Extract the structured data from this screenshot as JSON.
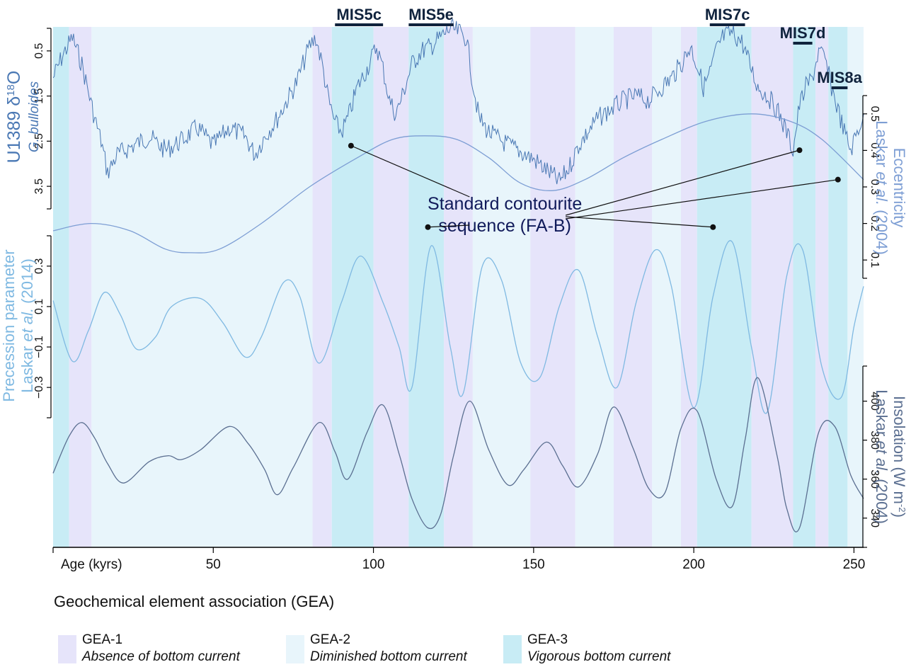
{
  "chart_data": {
    "type": "line",
    "x_axis": {
      "label": "Age (kyrs)",
      "range": [
        0,
        253
      ],
      "ticks": [
        50,
        100,
        150,
        200,
        250
      ]
    },
    "colors": {
      "gea1": "#e6e4fa",
      "gea2": "#e8f5fb",
      "gea3": "#c8ecf5",
      "d18o": "#4a78b4",
      "eccentricity": "#7d9ed4",
      "precession": "#7fb9e2",
      "insolation": "#5b6f91",
      "mis_bar": "#10233d",
      "annotation": "#101a5a"
    },
    "gea_bands": [
      {
        "gea": 3,
        "start": 0,
        "end": 5
      },
      {
        "gea": 1,
        "start": 5,
        "end": 12
      },
      {
        "gea": 2,
        "start": 12,
        "end": 81
      },
      {
        "gea": 1,
        "start": 81,
        "end": 87
      },
      {
        "gea": 3,
        "start": 87,
        "end": 100
      },
      {
        "gea": 1,
        "start": 100,
        "end": 111
      },
      {
        "gea": 3,
        "start": 111,
        "end": 122
      },
      {
        "gea": 1,
        "start": 122,
        "end": 131
      },
      {
        "gea": 2,
        "start": 131,
        "end": 149
      },
      {
        "gea": 1,
        "start": 149,
        "end": 163
      },
      {
        "gea": 2,
        "start": 163,
        "end": 175
      },
      {
        "gea": 1,
        "start": 175,
        "end": 187
      },
      {
        "gea": 2,
        "start": 187,
        "end": 196
      },
      {
        "gea": 1,
        "start": 196,
        "end": 201
      },
      {
        "gea": 3,
        "start": 201,
        "end": 218
      },
      {
        "gea": 1,
        "start": 218,
        "end": 231
      },
      {
        "gea": 3,
        "start": 231,
        "end": 238
      },
      {
        "gea": 1,
        "start": 238,
        "end": 242
      },
      {
        "gea": 3,
        "start": 242,
        "end": 248
      },
      {
        "gea": 2,
        "start": 248,
        "end": 253
      }
    ],
    "mis_labels": [
      {
        "label": "MIS5c",
        "start": 88,
        "end": 103,
        "level": 0
      },
      {
        "label": "MIS5e",
        "start": 111,
        "end": 125,
        "level": 0
      },
      {
        "label": "MIS7c",
        "start": 205,
        "end": 216,
        "level": 0
      },
      {
        "label": "MIS7d",
        "start": 231,
        "end": 237,
        "level": 1
      },
      {
        "label": "MIS8a",
        "start": 243,
        "end": 248,
        "level": 2
      }
    ],
    "series": [
      {
        "name": "U1389 δ18O",
        "subtitle": "G. bulloides",
        "axis_ticks": [
          0.5,
          1.5,
          2.5,
          3.5
        ],
        "axis_range": [
          0,
          4
        ],
        "points": [
          [
            0,
            1.1
          ],
          [
            3,
            0.6
          ],
          [
            6,
            0.2
          ],
          [
            9,
            0.8
          ],
          [
            11,
            1.4
          ],
          [
            13,
            2.0
          ],
          [
            15,
            2.5
          ],
          [
            17,
            3.2
          ],
          [
            20,
            2.8
          ],
          [
            25,
            2.6
          ],
          [
            30,
            2.4
          ],
          [
            35,
            2.7
          ],
          [
            40,
            2.5
          ],
          [
            45,
            2.2
          ],
          [
            50,
            2.6
          ],
          [
            55,
            2.2
          ],
          [
            60,
            2.4
          ],
          [
            63,
            2.8
          ],
          [
            66,
            2.4
          ],
          [
            70,
            2.0
          ],
          [
            73,
            1.6
          ],
          [
            76,
            1.2
          ],
          [
            78,
            0.8
          ],
          [
            80,
            0.4
          ],
          [
            82,
            0.2
          ],
          [
            84,
            0.8
          ],
          [
            86,
            1.6
          ],
          [
            88,
            2.1
          ],
          [
            90,
            2.3
          ],
          [
            92,
            2.0
          ],
          [
            95,
            1.3
          ],
          [
            98,
            0.9
          ],
          [
            101,
            0.4
          ],
          [
            103,
            0.9
          ],
          [
            105,
            1.6
          ],
          [
            107,
            1.9
          ],
          [
            109,
            1.5
          ],
          [
            112,
            0.8
          ],
          [
            115,
            0.5
          ],
          [
            118,
            0.4
          ],
          [
            121,
            0.2
          ],
          [
            124,
            0.0
          ],
          [
            127,
            0.1
          ],
          [
            129,
            0.2
          ],
          [
            131,
            1.2
          ],
          [
            133,
            2.0
          ],
          [
            136,
            2.3
          ],
          [
            140,
            2.5
          ],
          [
            145,
            2.7
          ],
          [
            150,
            2.9
          ],
          [
            155,
            3.2
          ],
          [
            158,
            3.4
          ],
          [
            161,
            3.1
          ],
          [
            164,
            2.6
          ],
          [
            167,
            2.3
          ],
          [
            170,
            2.0
          ],
          [
            174,
            1.8
          ],
          [
            178,
            1.6
          ],
          [
            182,
            1.5
          ],
          [
            186,
            1.6
          ],
          [
            190,
            1.3
          ],
          [
            193,
            1.1
          ],
          [
            196,
            0.8
          ],
          [
            199,
            0.4
          ],
          [
            201,
            0.8
          ],
          [
            203,
            1.3
          ],
          [
            205,
            1.0
          ],
          [
            207,
            0.5
          ],
          [
            209,
            0.2
          ],
          [
            212,
            0.1
          ],
          [
            215,
            0.3
          ],
          [
            218,
            0.9
          ],
          [
            220,
            1.3
          ],
          [
            223,
            1.5
          ],
          [
            226,
            1.8
          ],
          [
            229,
            2.3
          ],
          [
            231,
            2.7
          ],
          [
            233,
            1.7
          ],
          [
            235,
            1.3
          ],
          [
            237,
            1.1
          ],
          [
            239,
            0.5
          ],
          [
            241,
            0.7
          ],
          [
            243,
            1.3
          ],
          [
            245,
            1.8
          ],
          [
            247,
            2.3
          ],
          [
            249,
            2.7
          ],
          [
            251,
            2.3
          ],
          [
            253,
            1.9
          ]
        ]
      },
      {
        "name": "Eccentricity",
        "source": "Laskar et al. (2004)",
        "axis_ticks": [
          0.5,
          0.4,
          0.3,
          0.2,
          0.1
        ],
        "axis_range": [
          0.05,
          0.55
        ],
        "points": [
          [
            0,
            0.18
          ],
          [
            12,
            0.2
          ],
          [
            24,
            0.18
          ],
          [
            35,
            0.13
          ],
          [
            43,
            0.12
          ],
          [
            52,
            0.13
          ],
          [
            65,
            0.2
          ],
          [
            80,
            0.3
          ],
          [
            95,
            0.38
          ],
          [
            106,
            0.43
          ],
          [
            116,
            0.44
          ],
          [
            126,
            0.43
          ],
          [
            136,
            0.38
          ],
          [
            146,
            0.31
          ],
          [
            156,
            0.29
          ],
          [
            166,
            0.32
          ],
          [
            178,
            0.38
          ],
          [
            190,
            0.43
          ],
          [
            204,
            0.48
          ],
          [
            218,
            0.5
          ],
          [
            230,
            0.48
          ],
          [
            240,
            0.43
          ],
          [
            253,
            0.32
          ]
        ]
      },
      {
        "name": "Precession parameter",
        "source": "Laskar et al. (2014)",
        "axis_ticks": [
          0.3,
          0.1,
          -0.1,
          -0.3
        ],
        "axis_range": [
          -0.45,
          0.45
        ],
        "points": [
          [
            0,
            0.13
          ],
          [
            6,
            -0.17
          ],
          [
            11,
            -0.02
          ],
          [
            16,
            0.17
          ],
          [
            21,
            0.06
          ],
          [
            26,
            -0.11
          ],
          [
            32,
            -0.05
          ],
          [
            37,
            0.1
          ],
          [
            46,
            0.14
          ],
          [
            53,
            0.02
          ],
          [
            60,
            -0.15
          ],
          [
            65,
            -0.05
          ],
          [
            72,
            0.22
          ],
          [
            77,
            0.15
          ],
          [
            83,
            -0.18
          ],
          [
            90,
            0.12
          ],
          [
            96,
            0.35
          ],
          [
            103,
            0.12
          ],
          [
            108,
            -0.1
          ],
          [
            112,
            -0.3
          ],
          [
            118,
            0.4
          ],
          [
            124,
            -0.1
          ],
          [
            128,
            -0.33
          ],
          [
            134,
            0.3
          ],
          [
            140,
            0.23
          ],
          [
            146,
            -0.18
          ],
          [
            152,
            -0.25
          ],
          [
            158,
            0.1
          ],
          [
            164,
            0.28
          ],
          [
            170,
            -0.05
          ],
          [
            176,
            -0.3
          ],
          [
            182,
            0.12
          ],
          [
            188,
            0.38
          ],
          [
            193,
            0.2
          ],
          [
            200,
            -0.4
          ],
          [
            206,
            0.15
          ],
          [
            212,
            0.42
          ],
          [
            218,
            -0.1
          ],
          [
            223,
            -0.42
          ],
          [
            229,
            0.25
          ],
          [
            234,
            0.38
          ],
          [
            240,
            -0.2
          ],
          [
            246,
            -0.35
          ],
          [
            250,
            0.0
          ],
          [
            253,
            0.2
          ]
        ]
      },
      {
        "name": "Insolation (W m-2)",
        "source": "Laskar et al. (2004)",
        "axis_ticks": [
          400,
          380,
          360,
          340
        ],
        "axis_range": [
          325,
          418
        ],
        "points": [
          [
            0,
            363
          ],
          [
            5,
            382
          ],
          [
            9,
            389
          ],
          [
            13,
            381
          ],
          [
            17,
            368
          ],
          [
            22,
            358
          ],
          [
            30,
            369
          ],
          [
            36,
            372
          ],
          [
            40,
            370
          ],
          [
            46,
            375
          ],
          [
            55,
            387
          ],
          [
            61,
            378
          ],
          [
            66,
            365
          ],
          [
            70,
            352
          ],
          [
            75,
            366
          ],
          [
            83,
            389
          ],
          [
            88,
            374
          ],
          [
            92,
            360
          ],
          [
            98,
            384
          ],
          [
            103,
            398
          ],
          [
            108,
            373
          ],
          [
            112,
            350
          ],
          [
            117,
            335
          ],
          [
            121,
            342
          ],
          [
            125,
            372
          ],
          [
            130,
            400
          ],
          [
            136,
            375
          ],
          [
            142,
            357
          ],
          [
            147,
            365
          ],
          [
            154,
            379
          ],
          [
            159,
            367
          ],
          [
            164,
            356
          ],
          [
            170,
            373
          ],
          [
            175,
            397
          ],
          [
            181,
            376
          ],
          [
            186,
            355
          ],
          [
            191,
            353
          ],
          [
            196,
            386
          ],
          [
            201,
            395
          ],
          [
            207,
            360
          ],
          [
            212,
            346
          ],
          [
            216,
            380
          ],
          [
            220,
            412
          ],
          [
            226,
            372
          ],
          [
            229,
            345
          ],
          [
            233,
            335
          ],
          [
            239,
            384
          ],
          [
            244,
            387
          ],
          [
            249,
            362
          ],
          [
            253,
            350
          ]
        ]
      }
    ],
    "annotation": {
      "text_lines": [
        "Standard contourite",
        "sequence (FA-B)"
      ],
      "points": [
        [
          93,
          2.6
        ],
        [
          117,
          0.19
        ],
        [
          233,
          2.7
        ],
        [
          206,
          0.19
        ],
        [
          245,
          0.32
        ]
      ]
    },
    "legend": {
      "title": "Geochemical element association (GEA)",
      "items": [
        {
          "gea": 1,
          "name": "GEA-1",
          "desc": "Absence of bottom current"
        },
        {
          "gea": 2,
          "name": "GEA-2",
          "desc": "Diminished bottom current"
        },
        {
          "gea": 3,
          "name": "GEA-3",
          "desc": "Vigorous bottom current"
        }
      ]
    }
  }
}
